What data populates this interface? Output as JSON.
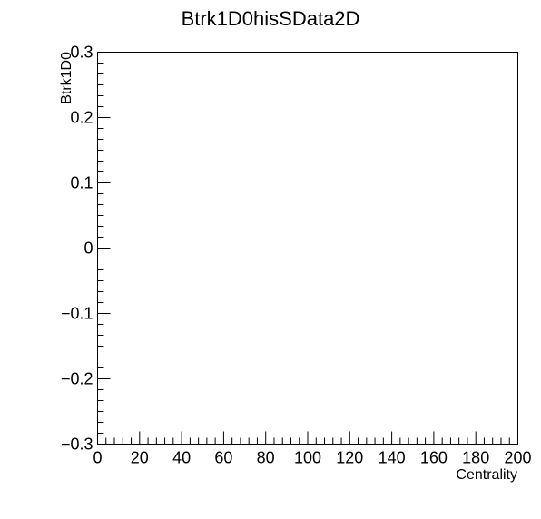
{
  "chart_data": {
    "type": "scatter",
    "title": "Btrk1D0hisSData2D",
    "xlabel": "Centrality",
    "ylabel": "Btrk1D0",
    "xlim": [
      0,
      200
    ],
    "ylim": [
      -0.3,
      0.3
    ],
    "x_ticks": [
      0,
      20,
      40,
      60,
      80,
      100,
      120,
      140,
      160,
      180,
      200
    ],
    "x_tick_labels": [
      "0",
      "20",
      "40",
      "60",
      "80",
      "100",
      "120",
      "140",
      "160",
      "180",
      "200"
    ],
    "y_ticks": [
      -0.3,
      -0.2,
      -0.1,
      0,
      0.1,
      0.2,
      0.3
    ],
    "y_tick_labels": [
      "−0.3",
      "−0.2",
      "−0.1",
      "0",
      "0.1",
      "0.2",
      "0.3"
    ],
    "x_minor_per_major": 4,
    "y_minor_per_major": 5,
    "grid": false,
    "points": []
  }
}
